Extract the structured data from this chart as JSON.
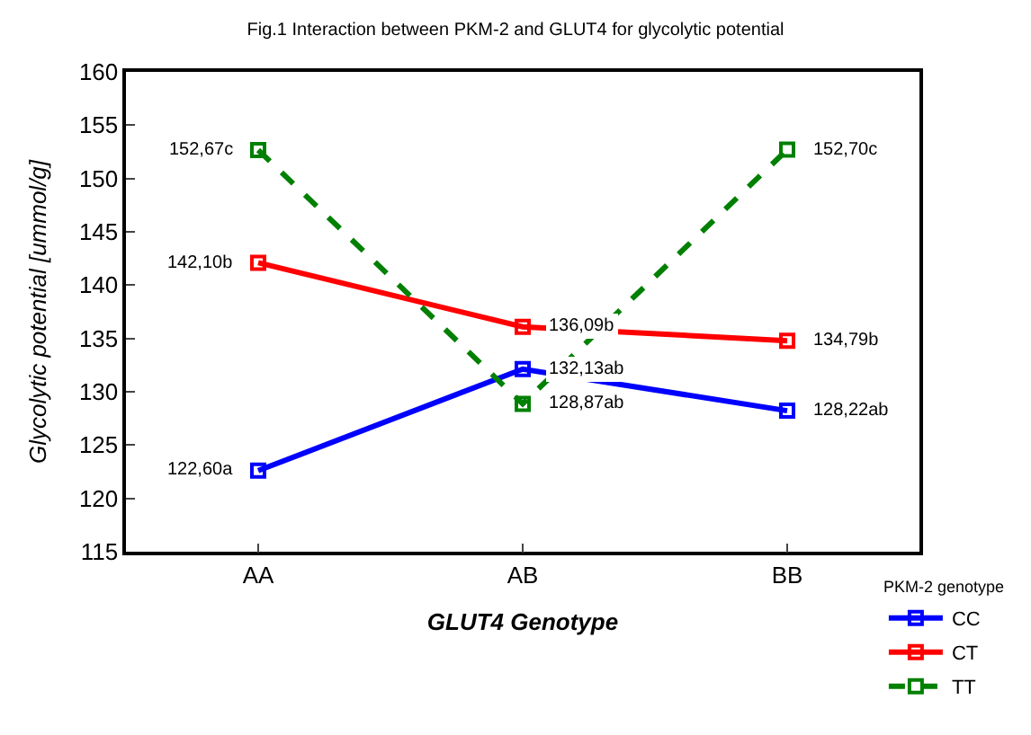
{
  "chart_data": {
    "type": "line",
    "title": "Fig.1 Interaction between PKM-2 and GLUT4 for glycolytic potential",
    "xlabel": "GLUT4 Genotype",
    "ylabel": "Glycolytic potential [ummol/g]",
    "legend_title": "PKM-2 genotype",
    "categories": [
      "AA",
      "AB",
      "BB"
    ],
    "ylim": [
      115,
      160
    ],
    "yticks": [
      115,
      120,
      125,
      130,
      135,
      140,
      145,
      150,
      155,
      160
    ],
    "legend": "bottom right",
    "marker": "square",
    "series": [
      {
        "name": "CC",
        "color": "#0000ff",
        "values": [
          122.6,
          132.13,
          128.22
        ],
        "value_labels": [
          "122,60a",
          "132,13ab",
          "128,22ab"
        ],
        "line_style": "solid"
      },
      {
        "name": "CT",
        "color": "#ff0000",
        "values": [
          142.1,
          136.09,
          134.79
        ],
        "value_labels": [
          "142,10b",
          "136,09b",
          "134,79b"
        ],
        "line_style": "solid"
      },
      {
        "name": "TT",
        "color": "#008000",
        "values": [
          152.67,
          128.87,
          152.7
        ],
        "value_labels": [
          "152,67c",
          "128,87ab",
          "152,70c"
        ],
        "line_style": "dashed"
      }
    ]
  }
}
